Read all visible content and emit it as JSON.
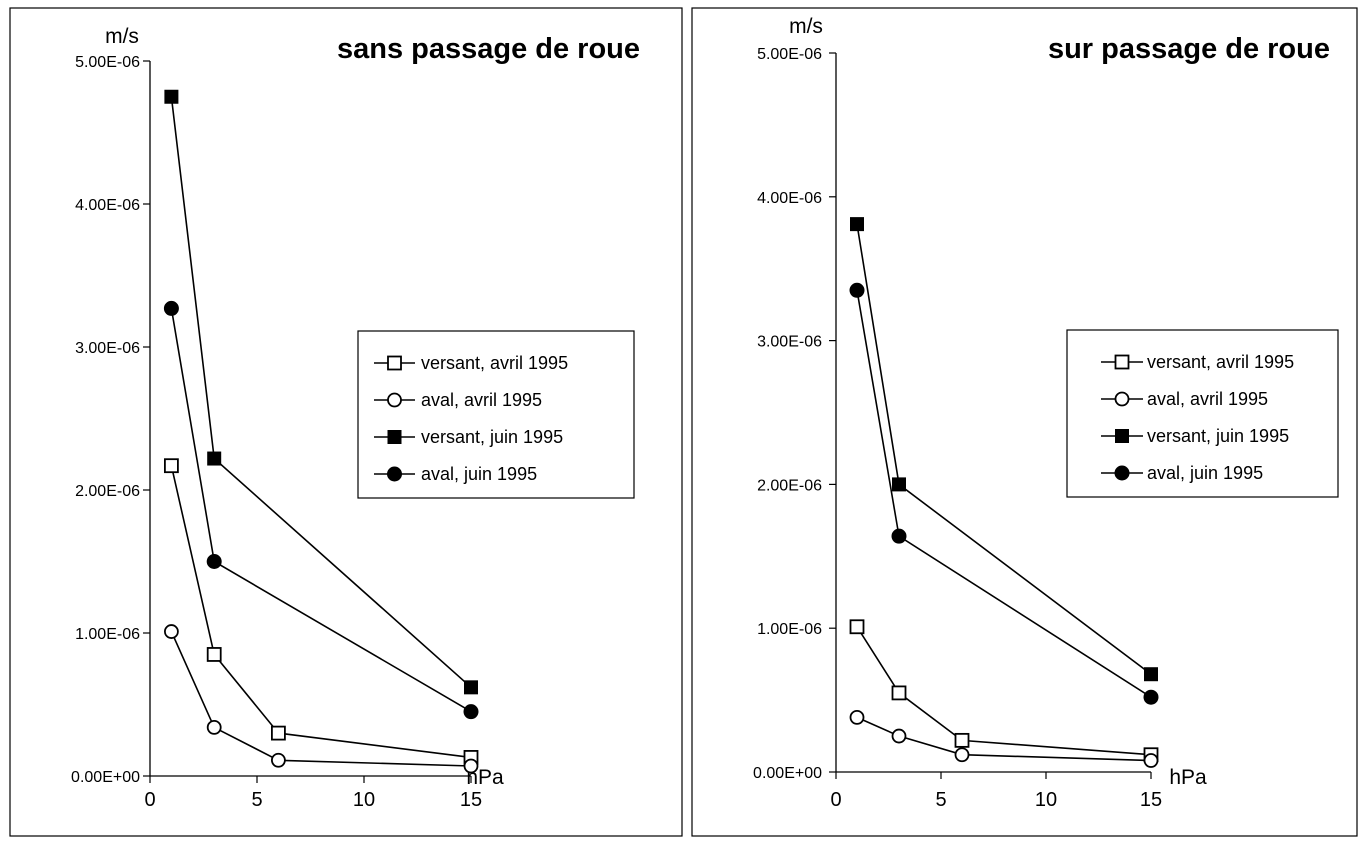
{
  "chart_data": [
    {
      "type": "line",
      "title": "sans passage de roue",
      "ylabel": "m/s",
      "xlabel": "hPa",
      "xlim": [
        0,
        15
      ],
      "ylim": [
        0,
        5e-06
      ],
      "x_ticks": [
        0,
        5,
        10,
        15
      ],
      "x_tick_labels": [
        "0",
        "5",
        "10",
        "15"
      ],
      "y_ticks": [
        0,
        1e-06,
        2e-06,
        3e-06,
        4e-06,
        5e-06
      ],
      "y_tick_labels": [
        "0.00E+00",
        "1.00E-06",
        "2.00E-06",
        "3.00E-06",
        "4.00E-06",
        "5.00E-06"
      ],
      "grid": false,
      "legend_position": "right",
      "series": [
        {
          "name": "versant, avril 1995",
          "marker": "square-open",
          "x": [
            1,
            3,
            6,
            15
          ],
          "y": [
            2.17e-06,
            8.5e-07,
            3e-07,
            1.3e-07
          ]
        },
        {
          "name": "aval, avril 1995",
          "marker": "circle-open",
          "x": [
            1,
            3,
            6,
            15
          ],
          "y": [
            1.01e-06,
            3.4e-07,
            1.1e-07,
            7e-08
          ]
        },
        {
          "name": "versant, juin 1995",
          "marker": "square-filled",
          "x": [
            1,
            3,
            15
          ],
          "y": [
            4.75e-06,
            2.22e-06,
            6.2e-07
          ]
        },
        {
          "name": "aval, juin 1995",
          "marker": "circle-filled",
          "x": [
            1,
            3,
            15
          ],
          "y": [
            3.27e-06,
            1.5e-06,
            4.5e-07
          ]
        }
      ]
    },
    {
      "type": "line",
      "title": "sur passage de roue",
      "ylabel": "m/s",
      "xlabel": "hPa",
      "xlim": [
        0,
        15
      ],
      "ylim": [
        0,
        5e-06
      ],
      "x_ticks": [
        0,
        5,
        10,
        15
      ],
      "x_tick_labels": [
        "0",
        "5",
        "10",
        "15"
      ],
      "y_ticks": [
        0,
        1e-06,
        2e-06,
        3e-06,
        4e-06,
        5e-06
      ],
      "y_tick_labels": [
        "0.00E+00",
        "1.00E-06",
        "2.00E-06",
        "3.00E-06",
        "4.00E-06",
        "5.00E-06"
      ],
      "grid": false,
      "legend_position": "right",
      "series": [
        {
          "name": "versant, avril 1995",
          "marker": "square-open",
          "x": [
            1,
            3,
            6,
            15
          ],
          "y": [
            1.01e-06,
            5.5e-07,
            2.2e-07,
            1.2e-07
          ]
        },
        {
          "name": "aval, avril 1995",
          "marker": "circle-open",
          "x": [
            1,
            3,
            6,
            15
          ],
          "y": [
            3.8e-07,
            2.5e-07,
            1.2e-07,
            8e-08
          ]
        },
        {
          "name": "versant, juin 1995",
          "marker": "square-filled",
          "x": [
            1,
            3,
            15
          ],
          "y": [
            3.81e-06,
            2e-06,
            6.8e-07
          ]
        },
        {
          "name": "aval, juin 1995",
          "marker": "circle-filled",
          "x": [
            1,
            3,
            15
          ],
          "y": [
            3.35e-06,
            1.64e-06,
            5.2e-07
          ]
        }
      ]
    }
  ]
}
